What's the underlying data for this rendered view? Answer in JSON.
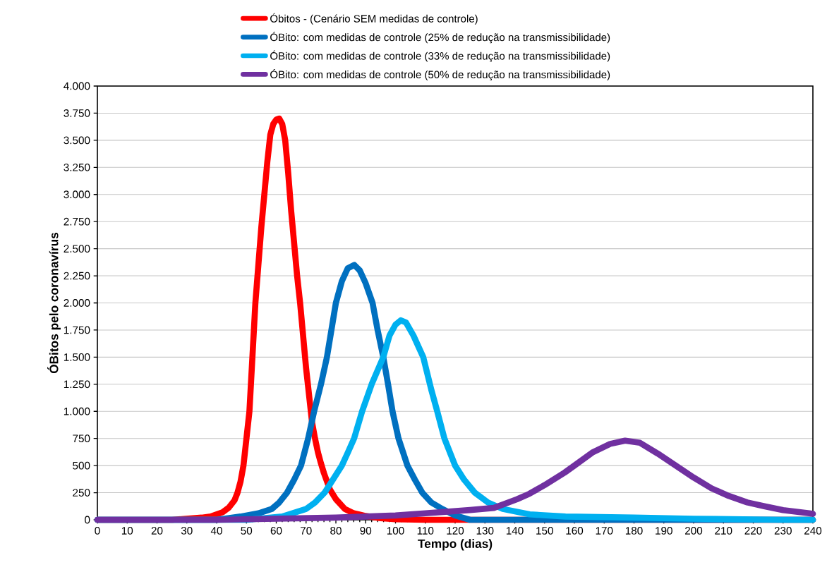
{
  "chart_data": {
    "type": "line",
    "xlabel": "Tempo (dias)",
    "ylabel": "ÓBitos pelo coronavírus",
    "xlim": [
      0,
      240
    ],
    "ylim": [
      0,
      4000
    ],
    "xticks": [
      0,
      10,
      20,
      30,
      40,
      50,
      60,
      70,
      80,
      90,
      100,
      110,
      120,
      130,
      140,
      150,
      160,
      170,
      180,
      190,
      200,
      210,
      220,
      230,
      240
    ],
    "yticks": [
      0,
      250,
      500,
      750,
      {
        "value": 1000,
        "label": "1.000"
      },
      {
        "value": 1250,
        "label": "1.250"
      },
      {
        "value": 1500,
        "label": "1.500"
      },
      {
        "value": 1750,
        "label": "1.750"
      },
      {
        "value": 2000,
        "label": "2.000"
      },
      {
        "value": 2250,
        "label": "2.250"
      },
      {
        "value": 2500,
        "label": "2.500"
      },
      {
        "value": 2750,
        "label": "2.750"
      },
      {
        "value": 3000,
        "label": "3.000"
      },
      {
        "value": 3250,
        "label": "3.250"
      },
      {
        "value": 3500,
        "label": "3.500"
      },
      {
        "value": 3750,
        "label": "3.750"
      },
      {
        "value": 4000,
        "label": "4.000"
      }
    ],
    "grid": "y",
    "legend": "top",
    "marker": "none",
    "line_style": "solid",
    "series": [
      {
        "name": "Óbitos - (Cenário SEM medidas de controle)",
        "color": "#ff0000",
        "x": [
          0,
          25,
          30,
          35,
          38,
          42,
          44,
          46,
          47,
          48,
          49,
          50,
          51,
          52,
          53,
          54,
          55,
          56,
          57,
          58,
          59,
          60,
          61,
          62,
          63,
          64,
          65,
          66,
          67,
          68,
          69,
          70,
          71,
          72,
          73,
          74,
          75,
          76,
          78,
          80,
          83,
          86,
          90,
          95,
          100,
          110,
          240
        ],
        "values": [
          0,
          0,
          10,
          20,
          30,
          70,
          110,
          180,
          250,
          350,
          500,
          750,
          1000,
          1500,
          2000,
          2350,
          2700,
          3000,
          3300,
          3550,
          3650,
          3690,
          3700,
          3650,
          3500,
          3200,
          2850,
          2550,
          2250,
          2000,
          1700,
          1400,
          1150,
          900,
          750,
          620,
          520,
          430,
          280,
          190,
          100,
          60,
          35,
          15,
          5,
          0,
          0
        ]
      },
      {
        "name": "ÓBito: com medidas de controle (25% de redução na transmissibilidade)",
        "color": "#0070c0",
        "x": [
          0,
          40,
          48,
          54,
          58.5,
          61,
          63.6,
          66,
          68.3,
          70.7,
          72.7,
          75,
          77,
          80,
          82,
          84,
          86.2,
          88,
          90,
          92.3,
          94,
          95.9,
          97.5,
          99,
          101,
          104,
          106.5,
          109,
          112,
          115.7,
          120,
          125,
          240
        ],
        "values": [
          0,
          0,
          30,
          60,
          100,
          160,
          250,
          370,
          500,
          750,
          1000,
          1250,
          1500,
          2000,
          2200,
          2320,
          2350,
          2300,
          2180,
          2000,
          1750,
          1500,
          1250,
          1000,
          750,
          500,
          370,
          250,
          160,
          100,
          40,
          0,
          0
        ]
      },
      {
        "name": "ÓBito: com medidas de controle (33% de redução na transmissibilidade)",
        "color": "#00b0f0",
        "x": [
          0,
          50,
          62,
          70,
          73,
          76.2,
          79,
          82,
          84,
          86.1,
          88.8,
          92,
          95.9,
          98,
          100,
          101.8,
          103.5,
          106,
          109.3,
          112,
          114,
          116.4,
          120,
          123,
          126.6,
          131,
          136,
          145,
          157,
          180,
          200,
          230,
          240
        ],
        "values": [
          0,
          0,
          30,
          100,
          160,
          250,
          370,
          500,
          620,
          750,
          1000,
          1250,
          1500,
          1700,
          1800,
          1840,
          1820,
          1700,
          1500,
          1200,
          1000,
          750,
          500,
          370,
          250,
          160,
          100,
          50,
          30,
          20,
          10,
          0,
          0
        ]
      },
      {
        "name": "ÓBito: com medidas de controle (50% de redução na transmissibilidade)",
        "color": "#7030a0",
        "x": [
          0,
          40,
          80,
          90,
          100,
          110,
          125,
          133,
          140.8,
          144.9,
          150,
          156.7,
          160,
          166,
          172,
          177,
          182,
          188,
          194,
          200,
          206,
          211.8,
          218,
          223.7,
          230,
          238.8,
          240
        ],
        "values": [
          0,
          0,
          20,
          30,
          40,
          60,
          90,
          110,
          190,
          240,
          320,
          435,
          500,
          620,
          700,
          730,
          710,
          610,
          500,
          390,
          290,
          220,
          160,
          125,
          90,
          60,
          55
        ]
      }
    ]
  }
}
